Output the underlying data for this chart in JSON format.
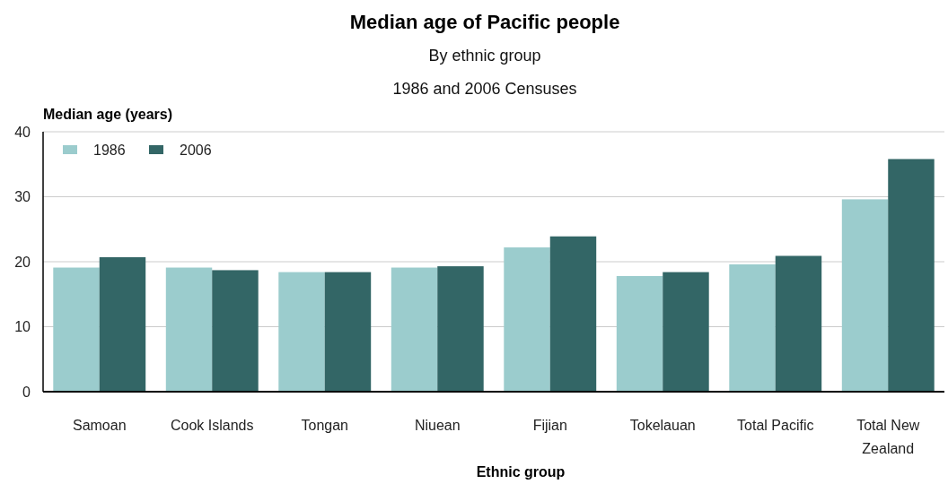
{
  "chart_data": {
    "type": "bar",
    "title": "Median age of Pacific people",
    "subtitle": "By ethnic group\n1986 and 2006 Censuses",
    "xlabel": "Ethnic group",
    "ylabel": "Median age (years)",
    "categories": [
      "Samoan",
      "Cook Islands",
      "Tongan",
      "Niuean",
      "Fijian",
      "Tokelauan",
      "Total Pacific",
      "Total New Zealand"
    ],
    "series": [
      {
        "name": "1986",
        "color": "#9bcccd",
        "values": [
          19.1,
          19.1,
          18.4,
          19.1,
          22.2,
          17.8,
          19.6,
          29.6
        ]
      },
      {
        "name": "2006",
        "color": "#336666",
        "values": [
          20.7,
          18.7,
          18.4,
          19.3,
          23.9,
          18.4,
          20.9,
          35.8
        ]
      }
    ],
    "ylim": [
      0,
      40
    ],
    "yticks": [
      0,
      10,
      20,
      30,
      40
    ],
    "grid": "y",
    "legend": "top left"
  }
}
